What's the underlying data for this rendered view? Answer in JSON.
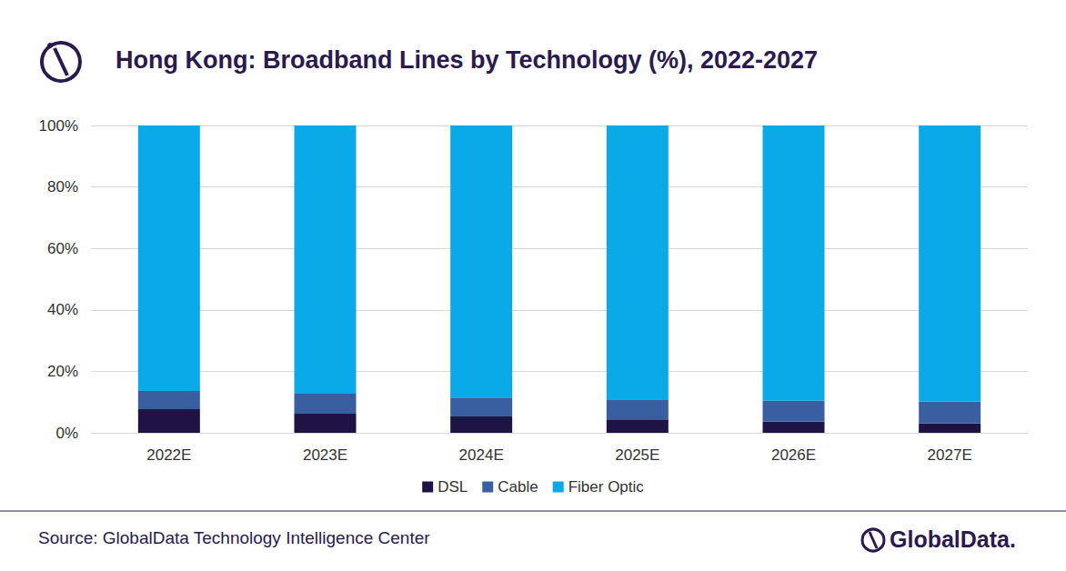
{
  "chart_data": {
    "type": "bar",
    "title": "Hong Kong: Broadband Lines by Technology (%), 2022-2027",
    "categories": [
      "2022E",
      "2023E",
      "2024E",
      "2025E",
      "2026E",
      "2027E"
    ],
    "series": [
      {
        "name": "DSL",
        "color": "#1f1346",
        "values": [
          7.7,
          6.2,
          5.3,
          4.4,
          3.6,
          3.0
        ]
      },
      {
        "name": "Cable",
        "color": "#3a5fa0",
        "values": [
          5.9,
          6.5,
          6.2,
          6.5,
          6.8,
          7.1
        ]
      },
      {
        "name": "Fiber Optic",
        "color": "#0aa9e8",
        "values": [
          86.4,
          87.3,
          88.5,
          89.1,
          89.6,
          89.9
        ]
      }
    ],
    "ylim": [
      0,
      100
    ],
    "yticks": [
      {
        "value": 0,
        "label": "0%"
      },
      {
        "value": 20,
        "label": "20%"
      },
      {
        "value": 40,
        "label": "40%"
      },
      {
        "value": 60,
        "label": "60%"
      },
      {
        "value": 80,
        "label": "80%"
      },
      {
        "value": 100,
        "label": "100%"
      }
    ],
    "stacked": true,
    "grid": true,
    "legend": "bottom"
  },
  "source": "Source: GlobalData Technology Intelligence Center",
  "logo": "GlobalData."
}
